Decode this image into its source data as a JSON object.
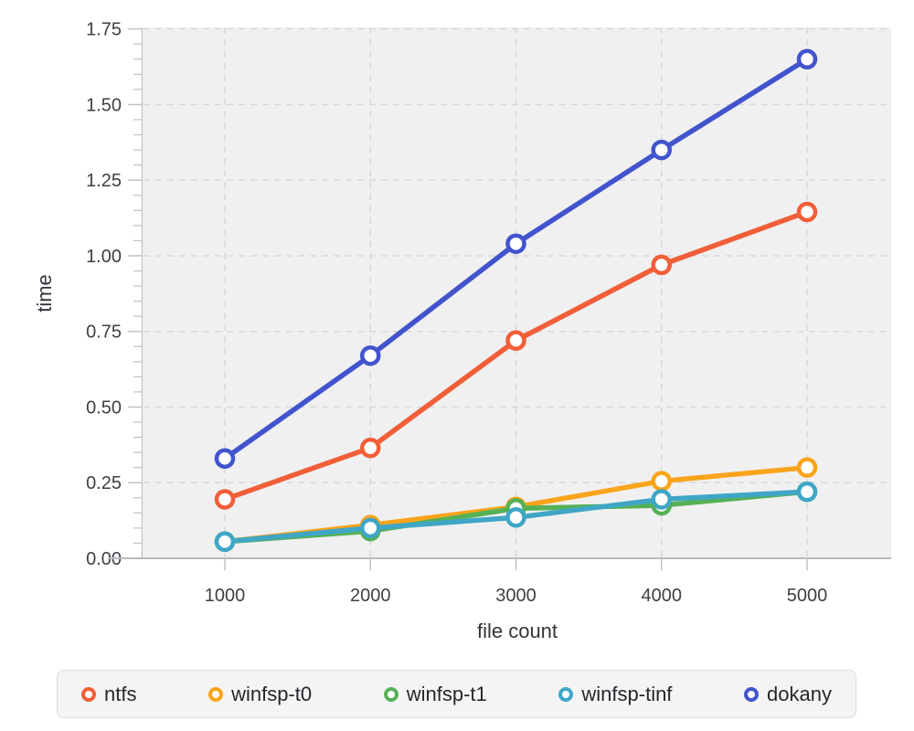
{
  "chart_data": {
    "type": "line",
    "xlabel": "file count",
    "ylabel": "time",
    "x": [
      1000,
      2000,
      3000,
      4000,
      5000
    ],
    "x_tick_labels": [
      "1000",
      "2000",
      "3000",
      "4000",
      "5000"
    ],
    "y_tick_labels": [
      "0.00",
      "0.25",
      "0.50",
      "0.75",
      "1.00",
      "1.25",
      "1.50",
      "1.75"
    ],
    "ylim": [
      0,
      1.755
    ],
    "y_major_step": 0.25,
    "y_minor_step": 0.05,
    "grid": "dashed",
    "legend_position": "bottom",
    "series": [
      {
        "name": "ntfs",
        "color": "#F15E38",
        "values": [
          0.195,
          0.365,
          0.72,
          0.97,
          1.145
        ]
      },
      {
        "name": "winfsp-t0",
        "color": "#FAA41B",
        "values": [
          0.055,
          0.11,
          0.17,
          0.255,
          0.3
        ]
      },
      {
        "name": "winfsp-t1",
        "color": "#55B156",
        "values": [
          0.055,
          0.09,
          0.165,
          0.175,
          0.22
        ]
      },
      {
        "name": "winfsp-tinf",
        "color": "#3FA6C6",
        "values": [
          0.055,
          0.1,
          0.135,
          0.195,
          0.22
        ]
      },
      {
        "name": "dokany",
        "color": "#4254CD",
        "values": [
          0.33,
          0.67,
          1.04,
          1.35,
          1.65
        ]
      }
    ],
    "colors": {
      "plot_bg": "#F0F0F1",
      "grid": "#D8D8DB",
      "axis": "#C2C2C6",
      "x_axis_line": "#B9B9BD",
      "tick_label": "#3E4045",
      "axis_title": "#33343A",
      "legend_bg": "#F4F4F5",
      "legend_border": "#DCDCDF",
      "legend_text": "#26272C",
      "marker_fill": "#FFFFFF"
    }
  }
}
